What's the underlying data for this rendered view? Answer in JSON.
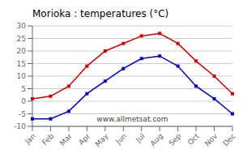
{
  "chart_data": {
    "type": "line",
    "title": "Morioka : temperatures (°C)",
    "categories": [
      "Jan",
      "Feb",
      "Mar",
      "Apr",
      "May",
      "Jun",
      "Jul",
      "Aug",
      "Sep",
      "Oct",
      "Nov",
      "Dec"
    ],
    "series": [
      {
        "color": "#cc0000",
        "values": [
          1,
          2,
          6,
          14,
          20,
          23,
          26,
          27,
          23,
          16,
          10,
          3
        ]
      },
      {
        "color": "#0000bb",
        "values": [
          -7,
          -7,
          -4,
          3,
          8,
          13,
          17,
          18,
          14,
          6,
          1,
          -5
        ]
      }
    ],
    "ylim": [
      -10,
      30
    ],
    "yticks": [
      -10,
      -5,
      0,
      5,
      10,
      15,
      20,
      25,
      30
    ],
    "grid": true,
    "marker": "square",
    "annotations": [
      "www.allmetsat.com"
    ]
  }
}
